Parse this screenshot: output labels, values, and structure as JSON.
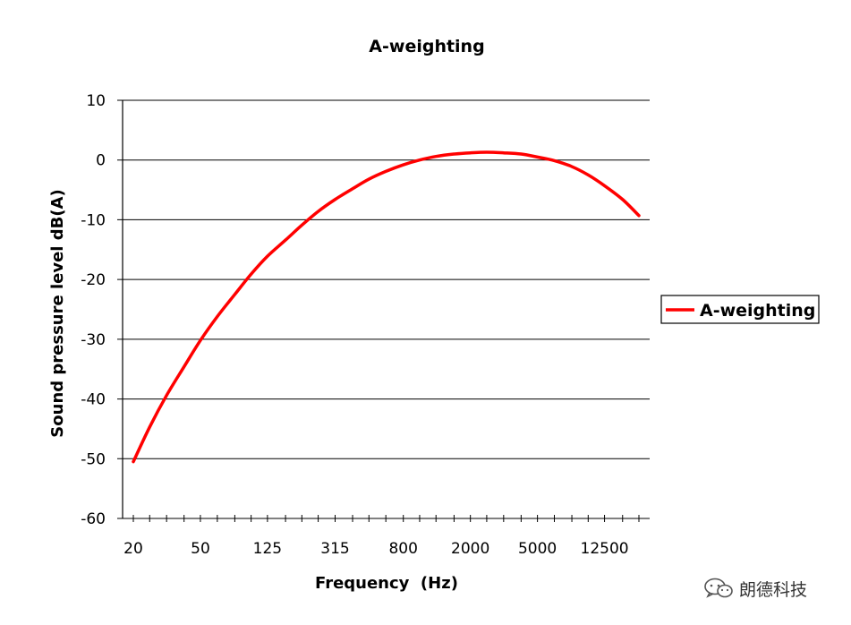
{
  "chart_data": {
    "type": "line",
    "title": "A-weighting",
    "xlabel": "Frequency  (Hz)",
    "ylabel": "Sound pressure level dB(A)",
    "ylim": [
      -60,
      10
    ],
    "y_ticks": [
      10,
      0,
      -10,
      -20,
      -30,
      -40,
      -50,
      -60
    ],
    "x_scale": "log",
    "xlim_hz": [
      20,
      20000
    ],
    "x_tick_labels": [
      "20",
      "50",
      "125",
      "315",
      "800",
      "2000",
      "5000",
      "12500"
    ],
    "x_tick_values": [
      20,
      50,
      125,
      315,
      800,
      2000,
      5000,
      12500
    ],
    "grid": true,
    "legend": "right",
    "series": [
      {
        "name": "A-weighting",
        "color": "#ff0000",
        "x": [
          20,
          25,
          31.5,
          40,
          50,
          63,
          80,
          100,
          125,
          160,
          200,
          250,
          315,
          400,
          500,
          630,
          800,
          1000,
          1250,
          1600,
          2000,
          2500,
          3150,
          4000,
          5000,
          6300,
          8000,
          10000,
          12500,
          16000,
          20000
        ],
        "values": [
          -50.5,
          -44.7,
          -39.4,
          -34.6,
          -30.2,
          -26.2,
          -22.5,
          -19.1,
          -16.1,
          -13.4,
          -10.9,
          -8.6,
          -6.6,
          -4.8,
          -3.2,
          -1.9,
          -0.8,
          0.0,
          0.6,
          1.0,
          1.2,
          1.3,
          1.2,
          1.0,
          0.5,
          -0.1,
          -1.1,
          -2.5,
          -4.3,
          -6.6,
          -9.3
        ]
      }
    ]
  },
  "watermark": {
    "icon": "wechat-icon",
    "text": "朗德科技"
  }
}
